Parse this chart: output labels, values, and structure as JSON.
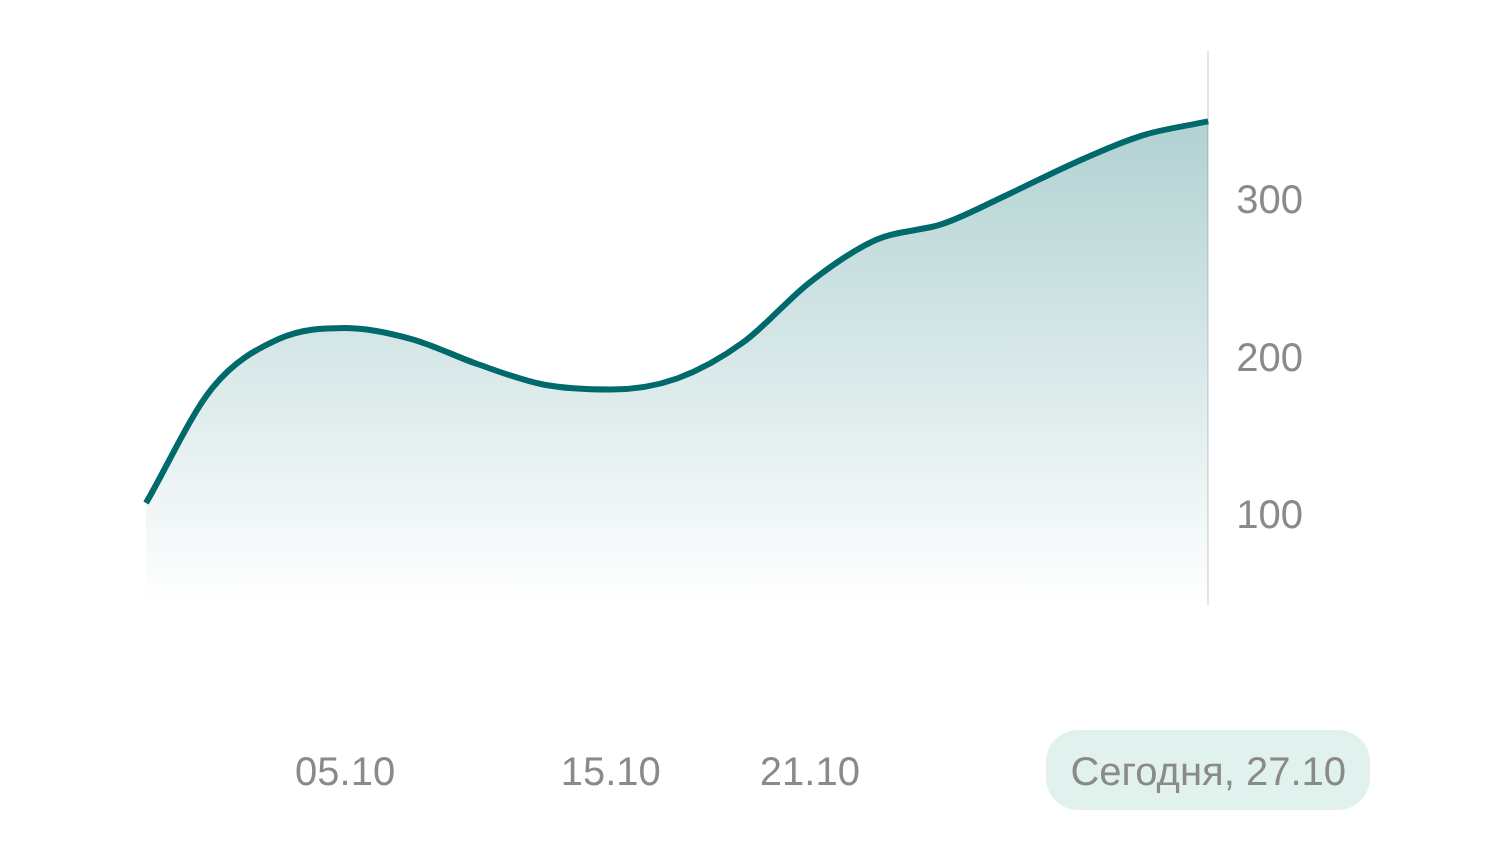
{
  "chart_data": {
    "type": "area",
    "categories": [
      null,
      null,
      null,
      "05.10",
      null,
      null,
      null,
      "15.10",
      null,
      null,
      "21.10",
      null,
      null,
      null,
      null,
      null,
      "Сегодня, 27.10"
    ],
    "series": [
      {
        "color": "#00696b",
        "values": [
          109,
          182,
          213,
          220,
          213,
          197,
          184,
          181,
          188,
          211,
          249,
          276,
          286,
          305,
          325,
          342,
          351
        ]
      }
    ],
    "ylim": [
      45,
      395
    ],
    "yticks": [
      100,
      200,
      300
    ],
    "grid": false,
    "legend": false
  }
}
